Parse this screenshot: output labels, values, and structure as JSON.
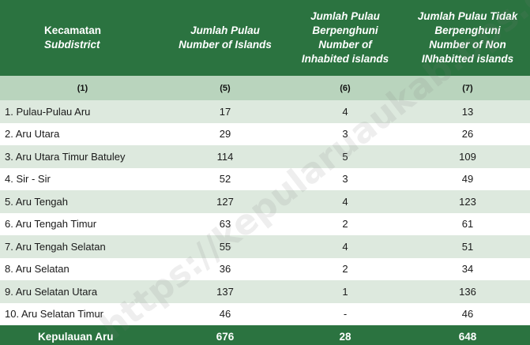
{
  "table": {
    "headers": [
      {
        "main": "Kecamatan",
        "sub": [
          "Subdistrict"
        ]
      },
      {
        "main": "Jumlah Pulau",
        "sub": [
          "Number of  Islands"
        ]
      },
      {
        "main": "Jumlah Pulau",
        "sub": [
          "Berpenghuni",
          "Number of",
          "Inhabited islands"
        ]
      },
      {
        "main": "Jumlah Pulau Tidak",
        "sub": [
          "Berpenghuni",
          "Number of Non",
          "INhabitted islands"
        ]
      }
    ],
    "column_numbers": [
      "(1)",
      "(5)",
      "(6)",
      "(7)"
    ],
    "rows": [
      {
        "name": "1.  Pulau-Pulau Aru",
        "islands": "17",
        "inhabited": "4",
        "uninhabited": "13"
      },
      {
        "name": "2.  Aru Utara",
        "islands": "29",
        "inhabited": "3",
        "uninhabited": "26"
      },
      {
        "name": "3.  Aru Utara Timur Batuley",
        "islands": "114",
        "inhabited": "5",
        "uninhabited": "109"
      },
      {
        "name": "4.  Sir - Sir",
        "islands": "52",
        "inhabited": "3",
        "uninhabited": "49"
      },
      {
        "name": "5.  Aru Tengah",
        "islands": "127",
        "inhabited": "4",
        "uninhabited": "123"
      },
      {
        "name": "6.  Aru Tengah Timur",
        "islands": "63",
        "inhabited": "2",
        "uninhabited": "61"
      },
      {
        "name": "7.  Aru Tengah Selatan",
        "islands": "55",
        "inhabited": "4",
        "uninhabited": "51"
      },
      {
        "name": "8.  Aru Selatan",
        "islands": "36",
        "inhabited": "2",
        "uninhabited": "34"
      },
      {
        "name": "9.  Aru Selatan Utara",
        "islands": "137",
        "inhabited": "1",
        "uninhabited": "136"
      },
      {
        "name": "10. Aru Selatan Timur",
        "islands": "46",
        "inhabited": "-",
        "uninhabited": "46"
      }
    ],
    "total": {
      "name": "Kepulauan Aru",
      "islands": "676",
      "inhabited": "28",
      "uninhabited": "648"
    }
  },
  "watermark": "https://kepularuaukab.bps.go.id",
  "colors": {
    "header_bg": "#2b7340",
    "subheader_bg": "#b9d4bd",
    "stripe_bg": "#dde9de"
  }
}
